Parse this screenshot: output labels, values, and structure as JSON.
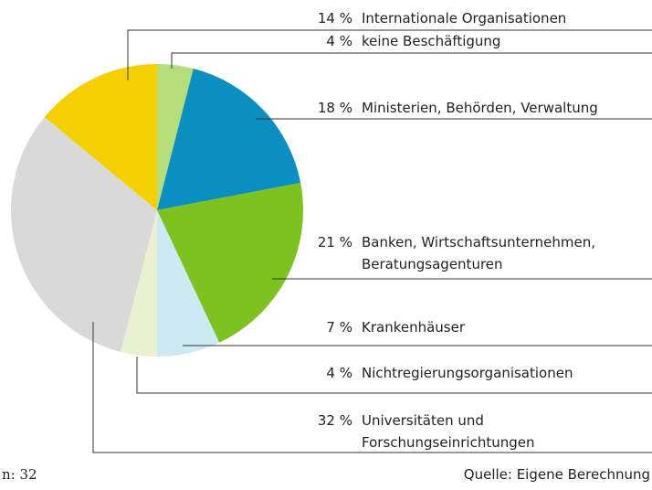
{
  "chart_data": {
    "type": "pie",
    "categories": [
      "keine Beschäftigung",
      "Ministerien, Behörden, Verwaltung",
      "Banken, Wirtschaftsunternehmen,\nBeratungsagenturen",
      "Krankenhäuser",
      "Nichtregierungsorganisationen",
      "Universitäten und\nForschungseinrichtungen",
      "Internationale Organisationen"
    ],
    "values": [
      4,
      18,
      21,
      7,
      4,
      32,
      14
    ],
    "value_labels": [
      "4 %",
      "18 %",
      "21 %",
      "7 %",
      "4 %",
      "32 %",
      "14 %"
    ],
    "colors": [
      "#b5dd7a",
      "#0a8fc0",
      "#7dc21e",
      "#cde9f4",
      "#e8f2d0",
      "#d9d9d9",
      "#f5d000"
    ],
    "note": "n: 32",
    "source": "Quelle: Eigene Berechnung"
  }
}
